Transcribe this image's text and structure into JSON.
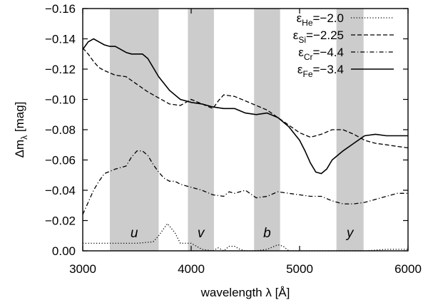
{
  "chart_data": {
    "type": "line",
    "title": "",
    "xlabel": "wavelength λ [Å]",
    "ylabel": "Δmλ [mag]",
    "ylabel_main": "Δm",
    "ylabel_sub": "λ",
    "ylabel_unit": " [mag]",
    "xlim": [
      3000,
      6000
    ],
    "ylim": [
      0.0,
      -0.16
    ],
    "y_inverted": true,
    "grid": false,
    "legend_position": "top-right",
    "xticks": [
      3000,
      4000,
      5000,
      6000
    ],
    "xtick_labels": [
      "3000",
      "4000",
      "5000",
      "6000"
    ],
    "yticks": [
      0,
      -0.02,
      -0.04,
      -0.06,
      -0.08,
      -0.1,
      -0.12,
      -0.14,
      -0.16
    ],
    "ytick_labels": [
      "0.00",
      "−0.02",
      "−0.04",
      "−0.06",
      "−0.08",
      "−0.10",
      "−0.12",
      "−0.14",
      "−0.16"
    ],
    "bands": [
      {
        "name": "u",
        "from": 3250,
        "to": 3700
      },
      {
        "name": "v",
        "from": 3970,
        "to": 4210
      },
      {
        "name": "b",
        "from": 4580,
        "to": 4820
      },
      {
        "name": "y",
        "from": 5340,
        "to": 5590
      }
    ],
    "band_color": "#cccccc",
    "series": [
      {
        "name": "He",
        "label_main": "ε",
        "label_sub": "He",
        "label_value": "=−2.0",
        "style": "dotted",
        "x": [
          3000,
          3500,
          3650,
          3700,
          3780,
          3850,
          3900,
          4000,
          4100,
          4200,
          4250,
          4300,
          4350,
          4400,
          4450,
          4500,
          4600,
          4700,
          4800,
          4850,
          4900,
          5000,
          5200,
          5400,
          5600,
          5800,
          6000
        ],
        "y": [
          -0.005,
          -0.005,
          -0.006,
          -0.01,
          -0.018,
          -0.012,
          -0.005,
          -0.005,
          -0.001,
          0.0,
          -0.002,
          0.0,
          -0.003,
          -0.003,
          -0.001,
          0.0,
          0.0,
          -0.001,
          -0.004,
          -0.003,
          0.0,
          0.0,
          0.0,
          0.0,
          0.0,
          -0.001,
          -0.001
        ]
      },
      {
        "name": "Si",
        "label_main": "ε",
        "label_sub": "Si",
        "label_value": "=−2.25",
        "style": "dashed",
        "x": [
          3000,
          3050,
          3100,
          3150,
          3200,
          3300,
          3400,
          3500,
          3600,
          3700,
          3800,
          3900,
          4000,
          4100,
          4200,
          4250,
          4300,
          4400,
          4500,
          4600,
          4700,
          4800,
          4900,
          5000,
          5100,
          5200,
          5300,
          5400,
          5500,
          5600,
          5700,
          5800,
          5900,
          6000
        ],
        "y": [
          -0.134,
          -0.13,
          -0.125,
          -0.121,
          -0.119,
          -0.116,
          -0.115,
          -0.11,
          -0.105,
          -0.101,
          -0.097,
          -0.096,
          -0.1,
          -0.097,
          -0.094,
          -0.099,
          -0.103,
          -0.102,
          -0.099,
          -0.096,
          -0.093,
          -0.088,
          -0.083,
          -0.078,
          -0.075,
          -0.077,
          -0.08,
          -0.08,
          -0.077,
          -0.073,
          -0.071,
          -0.07,
          -0.069,
          -0.068
        ]
      },
      {
        "name": "Cr",
        "label_main": "ε",
        "label_sub": "Cr",
        "label_value": "=−4.4",
        "style": "dashdot",
        "x": [
          3000,
          3050,
          3100,
          3150,
          3200,
          3300,
          3400,
          3450,
          3500,
          3550,
          3600,
          3650,
          3700,
          3750,
          3800,
          3850,
          3900,
          4000,
          4100,
          4200,
          4300,
          4350,
          4400,
          4500,
          4600,
          4700,
          4800,
          4900,
          5000,
          5100,
          5200,
          5300,
          5400,
          5500,
          5600,
          5700,
          5800,
          5900,
          6000
        ],
        "y": [
          -0.024,
          -0.032,
          -0.04,
          -0.046,
          -0.051,
          -0.054,
          -0.056,
          -0.062,
          -0.066,
          -0.066,
          -0.063,
          -0.057,
          -0.052,
          -0.048,
          -0.046,
          -0.046,
          -0.044,
          -0.042,
          -0.04,
          -0.037,
          -0.036,
          -0.039,
          -0.038,
          -0.04,
          -0.035,
          -0.036,
          -0.039,
          -0.038,
          -0.037,
          -0.036,
          -0.036,
          -0.033,
          -0.031,
          -0.031,
          -0.032,
          -0.034,
          -0.036,
          -0.038,
          -0.038
        ]
      },
      {
        "name": "Fe",
        "label_main": "ε",
        "label_sub": "Fe",
        "label_value": "=−3.4",
        "style": "solid",
        "x": [
          3000,
          3050,
          3100,
          3150,
          3200,
          3250,
          3300,
          3400,
          3450,
          3500,
          3550,
          3600,
          3650,
          3700,
          3800,
          3900,
          4000,
          4100,
          4200,
          4300,
          4400,
          4500,
          4600,
          4700,
          4800,
          4900,
          5000,
          5050,
          5100,
          5150,
          5200,
          5250,
          5300,
          5400,
          5500,
          5600,
          5700,
          5800,
          5900,
          6000
        ],
        "y": [
          -0.133,
          -0.138,
          -0.14,
          -0.138,
          -0.136,
          -0.135,
          -0.135,
          -0.131,
          -0.13,
          -0.13,
          -0.13,
          -0.127,
          -0.121,
          -0.115,
          -0.106,
          -0.1,
          -0.098,
          -0.097,
          -0.095,
          -0.094,
          -0.094,
          -0.091,
          -0.09,
          -0.091,
          -0.088,
          -0.082,
          -0.073,
          -0.066,
          -0.058,
          -0.052,
          -0.051,
          -0.054,
          -0.06,
          -0.066,
          -0.071,
          -0.076,
          -0.077,
          -0.076,
          -0.076,
          -0.076
        ]
      }
    ]
  }
}
